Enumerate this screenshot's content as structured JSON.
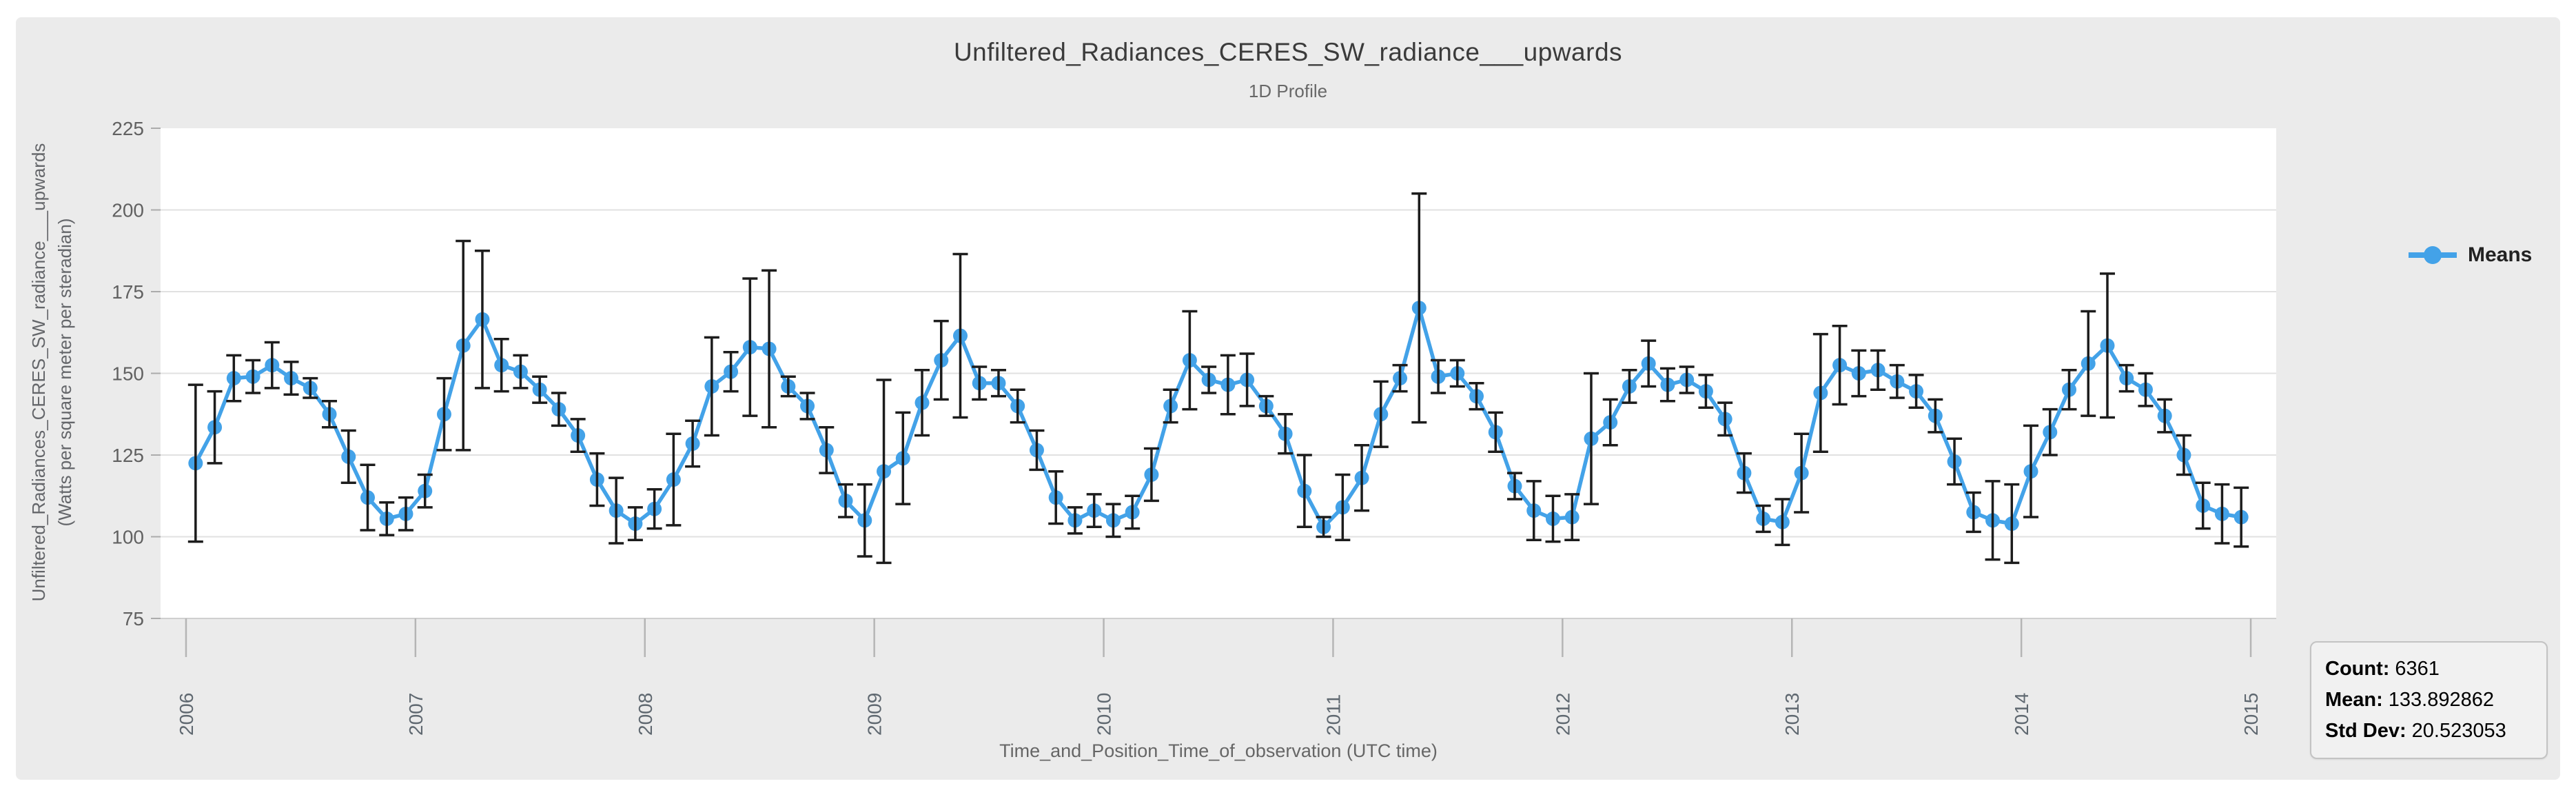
{
  "header": {
    "title": "Unfiltered_Radiances_CERES_SW_radiance___upwards",
    "subtitle": "1D Profile"
  },
  "axes": {
    "x": {
      "title": "Time_and_Position_Time_of_observation (UTC time)",
      "tick_labels": [
        "2006",
        "2007",
        "2008",
        "2009",
        "2010",
        "2011",
        "2012",
        "2013",
        "2014",
        "2015"
      ]
    },
    "y": {
      "title_line1": "Unfiltered_Radiances_CERES_SW_radiance___upwards",
      "title_line2": "(Watts per square meter per steradian)",
      "tick_labels": [
        "75",
        "100",
        "125",
        "150",
        "175",
        "200",
        "225"
      ]
    }
  },
  "legend": {
    "label": "Means",
    "color": "#43a2e8"
  },
  "stats": {
    "count_label": "Count:",
    "count": "6361",
    "mean_label": "Mean:",
    "mean": "133.892862",
    "std_label": "Std Dev:",
    "std": "20.523053"
  },
  "chart_data": {
    "type": "line",
    "series_name": "Means",
    "title": "Unfiltered_Radiances_CERES_SW_radiance___upwards",
    "subtitle": "1D Profile",
    "xlabel": "Time_and_Position_Time_of_observation (UTC time)",
    "ylabel": "Unfiltered_Radiances_CERES_SW_radiance___upwards (Watts per square meter per steradian)",
    "grid": true,
    "legend_position": "right",
    "markers": true,
    "error_bars": true,
    "line_color": "#43a2e8",
    "error_color": "#1c1c1c",
    "start_year": 2006,
    "frequency": "monthly",
    "x_range": [
      2005.889,
      2015.111
    ],
    "y_range": [
      75,
      225
    ],
    "x_ticks": [
      2006,
      2007,
      2008,
      2009,
      2010,
      2011,
      2012,
      2013,
      2014,
      2015
    ],
    "y_ticks": [
      75,
      100,
      125,
      150,
      175,
      200,
      225
    ],
    "values": [
      122.5,
      133.5,
      148.5,
      149,
      152.5,
      148.5,
      145.5,
      137.5,
      124.5,
      112,
      105.5,
      107,
      114,
      137.5,
      158.5,
      166.5,
      152.5,
      150.5,
      145,
      139,
      131,
      117.5,
      108,
      104,
      108.5,
      117.5,
      128.5,
      146,
      150.5,
      158,
      157.5,
      146,
      140,
      126.5,
      111,
      105,
      120,
      124,
      141,
      154,
      161.5,
      147,
      147,
      140,
      126.5,
      112,
      105,
      108,
      105,
      107.5,
      119,
      140,
      154,
      148,
      146.5,
      148,
      140,
      131.5,
      114,
      103,
      109,
      118,
      137.5,
      148.5,
      170,
      149,
      150,
      143,
      132,
      115.5,
      108,
      105.5,
      106,
      130,
      135,
      146,
      153,
      146.5,
      148,
      144.5,
      136,
      119.5,
      105.5,
      104.5,
      119.5,
      144,
      152.5,
      150,
      151,
      147.5,
      144.5,
      137,
      123,
      107.5,
      105,
      104,
      120,
      132,
      145,
      153,
      158.5,
      148.5,
      145,
      137,
      125,
      109.5,
      107,
      106
    ],
    "errors": [
      24,
      11,
      7,
      5,
      7,
      5,
      3,
      4,
      8,
      10,
      5,
      5,
      5,
      11,
      32,
      21,
      8,
      5,
      4,
      5,
      5,
      8,
      10,
      5,
      6,
      14,
      7,
      15,
      6,
      21,
      24,
      3,
      4,
      7,
      5,
      11,
      28,
      14,
      10,
      12,
      25,
      5,
      4,
      5,
      6,
      8,
      4,
      5,
      5,
      5,
      8,
      5,
      15,
      4,
      9,
      8,
      3,
      6,
      11,
      3,
      10,
      10,
      10,
      4,
      35,
      5,
      4,
      4,
      6,
      4,
      9,
      7,
      7,
      20,
      7,
      5,
      7,
      5,
      4,
      5,
      5,
      6,
      4,
      7,
      12,
      18,
      12,
      7,
      6,
      5,
      5,
      5,
      7,
      6,
      12,
      12,
      14,
      7,
      6,
      16,
      22,
      4,
      5,
      5,
      6,
      7,
      9,
      9
    ]
  }
}
